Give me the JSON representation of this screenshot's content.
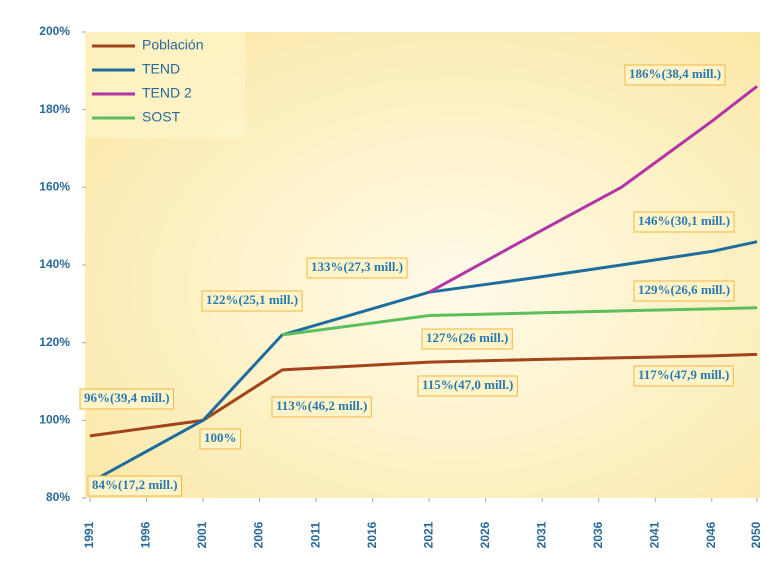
{
  "chart_data": {
    "type": "line",
    "x": [
      1991,
      2001,
      2008,
      2021,
      2031,
      2038,
      2046,
      2050
    ],
    "series": [
      {
        "name": "Población",
        "color": "#a3431b",
        "values": [
          96,
          100,
          113,
          115,
          115.7,
          116.1,
          116.6,
          117
        ]
      },
      {
        "name": "TEND",
        "color": "#1f6d9e",
        "values": [
          84,
          100,
          122,
          133,
          137,
          140,
          143.5,
          146
        ]
      },
      {
        "name": "TEND 2",
        "color": "#b234a6",
        "values": [
          null,
          null,
          null,
          133,
          149,
          160,
          177,
          186
        ]
      },
      {
        "name": "SOST",
        "color": "#5cbf5c",
        "values": [
          null,
          null,
          122,
          127,
          127.7,
          128.2,
          128.7,
          129
        ]
      }
    ],
    "xlim": [
      1991,
      2050
    ],
    "xticks": [
      1991,
      1996,
      2001,
      2006,
      2011,
      2016,
      2021,
      2026,
      2031,
      2036,
      2041,
      2046,
      2050
    ],
    "ylim": [
      80,
      200
    ],
    "yticks": [
      {
        "value": 80,
        "label": "80%"
      },
      {
        "value": 100,
        "label": "100%"
      },
      {
        "value": 120,
        "label": "120%"
      },
      {
        "value": 140,
        "label": "140%"
      },
      {
        "value": 160,
        "label": "160%"
      },
      {
        "value": 180,
        "label": "180%"
      },
      {
        "value": 200,
        "label": "200%"
      }
    ],
    "legend": "upper left",
    "annotations": [
      "186%(38,4 mill.)",
      "146%(30,1 mill.)",
      "133%(27,3 mill.)",
      "129%(26,6 mill.)",
      "122%(25,1 mill.)",
      "127%(26 mill.)",
      "96%(39,4 mill.)",
      "113%(46,2 mill.)",
      "115%(47,0 mill.)",
      "117%(47,9 mill.)",
      "100%",
      "84%(17,2 mill.)"
    ]
  }
}
